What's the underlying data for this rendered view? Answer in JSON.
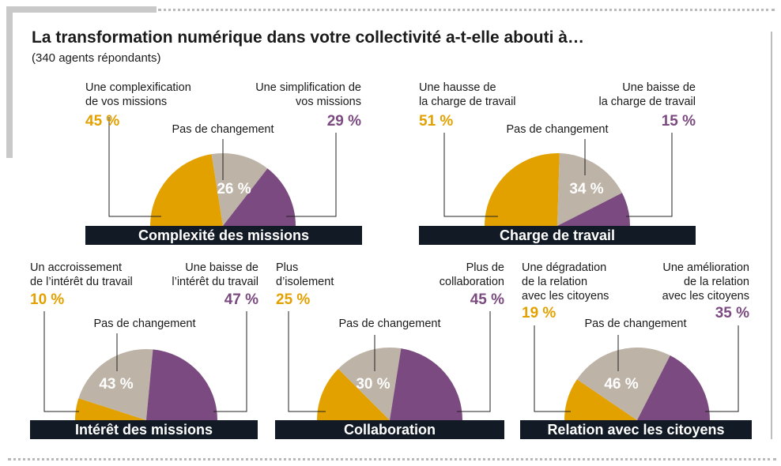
{
  "header": {
    "title": "La transformation numérique dans votre collectivité a-t-elle abouti à…",
    "subtitle": "(340 agents répondants)"
  },
  "colors": {
    "left": "#e3a100",
    "middle": "#bdb3a6",
    "right": "#7b4a80",
    "bar": "#121a26"
  },
  "chart_data": [
    {
      "type": "pie",
      "title": "Complexité des missions",
      "labels": [
        "Une complexification de vos missions",
        "Pas de changement",
        "Une simplification de vos missions"
      ],
      "values": [
        45,
        26,
        29
      ],
      "left_label": "Une complexification\nde vos missions",
      "left_pct": "45 %",
      "mid_label": "Pas de changement",
      "mid_pct": "26 %",
      "right_label": "Une simplification de\nvos missions",
      "right_pct": "29 %"
    },
    {
      "type": "pie",
      "title": "Charge de travail",
      "labels": [
        "Une hausse de la charge de travail",
        "Pas de changement",
        "Une baisse de la charge de travail"
      ],
      "values": [
        51,
        34,
        15
      ],
      "left_label": "Une hausse de\nla charge de travail",
      "left_pct": "51 %",
      "mid_label": "Pas de changement",
      "mid_pct": "34 %",
      "right_label": "Une baisse de\nla charge de travail",
      "right_pct": "15 %"
    },
    {
      "type": "pie",
      "title": "Intérêt des missions",
      "labels": [
        "Un accroissement de l’intérêt du travail",
        "Pas de changement",
        "Une baisse de l’intérêt du travail"
      ],
      "values": [
        10,
        43,
        47
      ],
      "left_label": "Un accroissement\nde l’intérêt du travail",
      "left_pct": "10 %",
      "mid_label": "Pas de changement",
      "mid_pct": "43 %",
      "right_label": "Une baisse de\nl’intérêt du travail",
      "right_pct": "47 %"
    },
    {
      "type": "pie",
      "title": "Collaboration",
      "labels": [
        "Plus d’isolement",
        "Pas de changement",
        "Plus de collaboration"
      ],
      "values": [
        25,
        30,
        45
      ],
      "left_label": "Plus\nd’isolement",
      "left_pct": "25 %",
      "mid_label": "Pas de changement",
      "mid_pct": "30 %",
      "right_label": "Plus de\ncollaboration",
      "right_pct": "45 %"
    },
    {
      "type": "pie",
      "title": "Relation avec les citoyens",
      "labels": [
        "Une dégradation de la relation avec les citoyens",
        "Pas de changement",
        "Une amélioration de la relation avec les citoyens"
      ],
      "values": [
        19,
        46,
        35
      ],
      "left_label": "Une dégradation\nde la relation\navec les citoyens",
      "left_pct": "19 %",
      "mid_label": "Pas de changement",
      "mid_pct": "46 %",
      "right_label": "Une amélioration\nde la relation\navec les citoyens",
      "right_pct": "35 %"
    }
  ]
}
